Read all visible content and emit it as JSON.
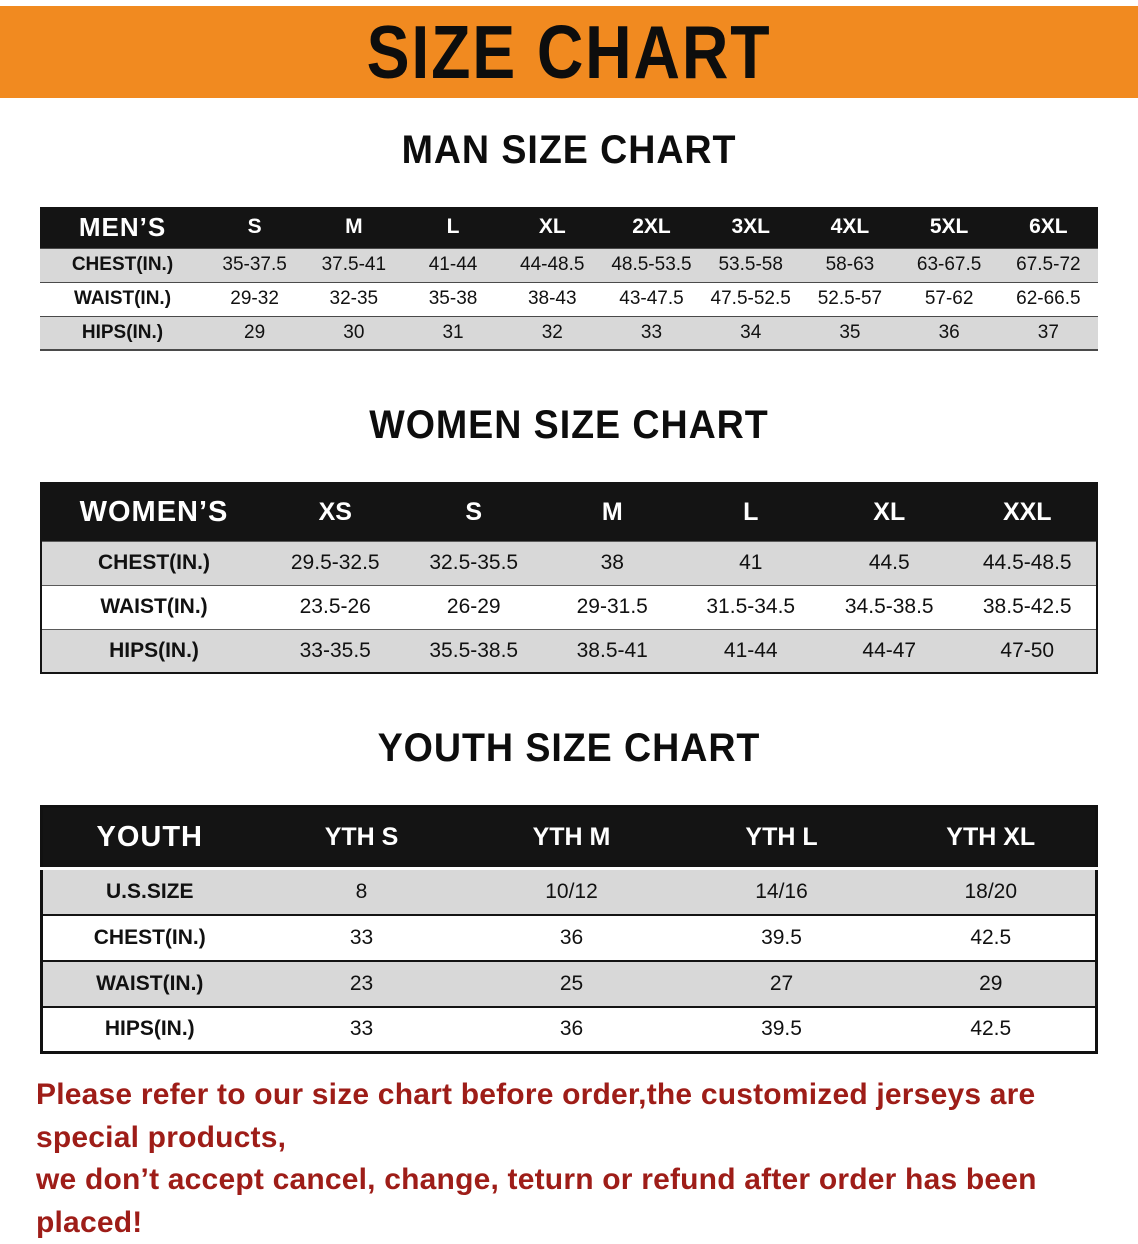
{
  "banner": {
    "title": "SIZE CHART"
  },
  "colors": {
    "banner_bg": "#f18a20",
    "header_bg": "#141414",
    "stripe": "#d8d8d8",
    "footer_text": "#9e1d18"
  },
  "charts": [
    {
      "id": "men",
      "title": "MAN SIZE CHART",
      "label_header": "MEN’S",
      "size_headers": [
        "S",
        "M",
        "L",
        "XL",
        "2XL",
        "3XL",
        "4XL",
        "5XL",
        "6XL"
      ],
      "rows": [
        {
          "label": "CHEST(IN.)",
          "values": [
            "35-37.5",
            "37.5-41",
            "41-44",
            "44-48.5",
            "48.5-53.5",
            "53.5-58",
            "58-63",
            "63-67.5",
            "67.5-72"
          ]
        },
        {
          "label": "WAIST(IN.)",
          "values": [
            "29-32",
            "32-35",
            "35-38",
            "38-43",
            "43-47.5",
            "47.5-52.5",
            "52.5-57",
            "57-62",
            "62-66.5"
          ]
        },
        {
          "label": "HIPS(IN.)",
          "values": [
            "29",
            "30",
            "31",
            "32",
            "33",
            "34",
            "35",
            "36",
            "37"
          ]
        }
      ]
    },
    {
      "id": "women",
      "title": "WOMEN SIZE CHART",
      "label_header": "WOMEN’S",
      "size_headers": [
        "XS",
        "S",
        "M",
        "L",
        "XL",
        "XXL"
      ],
      "rows": [
        {
          "label": "CHEST(IN.)",
          "values": [
            "29.5-32.5",
            "32.5-35.5",
            "38",
            "41",
            "44.5",
            "44.5-48.5"
          ]
        },
        {
          "label": "WAIST(IN.)",
          "values": [
            "23.5-26",
            "26-29",
            "29-31.5",
            "31.5-34.5",
            "34.5-38.5",
            "38.5-42.5"
          ]
        },
        {
          "label": "HIPS(IN.)",
          "values": [
            "33-35.5",
            "35.5-38.5",
            "38.5-41",
            "41-44",
            "44-47",
            "47-50"
          ]
        }
      ]
    },
    {
      "id": "youth",
      "title": "YOUTH SIZE CHART",
      "label_header": "YOUTH",
      "size_headers": [
        "YTH S",
        "YTH M",
        "YTH L",
        "YTH XL"
      ],
      "rows": [
        {
          "label": "U.S.SIZE",
          "values": [
            "8",
            "10/12",
            "14/16",
            "18/20"
          ]
        },
        {
          "label": "CHEST(IN.)",
          "values": [
            "33",
            "36",
            "39.5",
            "42.5"
          ]
        },
        {
          "label": "WAIST(IN.)",
          "values": [
            "23",
            "25",
            "27",
            "29"
          ]
        },
        {
          "label": "HIPS(IN.)",
          "values": [
            "33",
            "36",
            "39.5",
            "42.5"
          ]
        }
      ]
    }
  ],
  "footer": {
    "line1": "Please refer to our size chart before order,the customized jerseys are special products,",
    "line2": "we don’t accept cancel, change, teturn or refund after order has been placed!"
  }
}
